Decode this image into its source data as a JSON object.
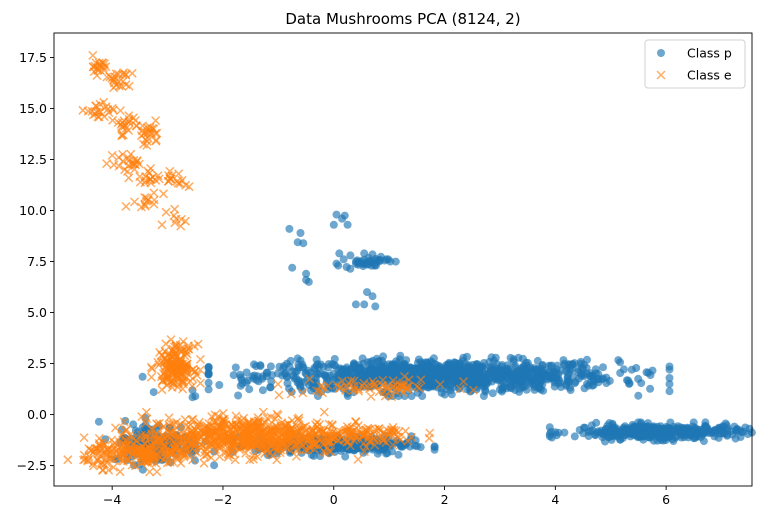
{
  "chart_data": {
    "type": "scatter",
    "title": "Data Mushrooms PCA (8124, 2)",
    "xlabel": "",
    "ylabel": "",
    "xlim": [
      -5.05,
      7.55
    ],
    "ylim": [
      -3.5,
      18.7
    ],
    "xticks": [
      -4,
      -2,
      0,
      2,
      4,
      6
    ],
    "xtick_labels": [
      "−4",
      "−2",
      "0",
      "2",
      "4",
      "6"
    ],
    "yticks": [
      -2.5,
      0.0,
      2.5,
      5.0,
      7.5,
      10.0,
      12.5,
      15.0,
      17.5
    ],
    "ytick_labels": [
      "−2.5",
      "0.0",
      "2.5",
      "5.0",
      "7.5",
      "10.0",
      "12.5",
      "15.0",
      "17.5"
    ],
    "grid": false,
    "legend_position": "top-right",
    "series": [
      {
        "name": "Class p",
        "marker": "circle",
        "color": "#1f77b4",
        "opacity": 0.65,
        "clusters": [
          {
            "cx": 1.9,
            "cy": 1.9,
            "sx": 1.6,
            "sy": 0.38,
            "n": 1100
          },
          {
            "cx": 5.85,
            "cy": -0.85,
            "sx": 0.75,
            "sy": 0.18,
            "n": 380
          },
          {
            "cx": 0.0,
            "cy": -1.5,
            "sx": 0.7,
            "sy": 0.22,
            "n": 300
          },
          {
            "cx": -3.2,
            "cy": -1.4,
            "sx": 0.4,
            "sy": 0.5,
            "n": 160
          },
          {
            "cx": 0.6,
            "cy": 7.5,
            "sx": 0.2,
            "sy": 0.15,
            "n": 35
          }
        ],
        "points": [
          [
            -0.8,
            9.1
          ],
          [
            -0.6,
            8.9
          ],
          [
            -0.65,
            8.45
          ],
          [
            -0.55,
            8.4
          ],
          [
            -0.75,
            7.2
          ],
          [
            -0.5,
            6.9
          ],
          [
            -0.5,
            6.6
          ],
          [
            -0.45,
            6.5
          ],
          [
            0.05,
            9.8
          ],
          [
            0.15,
            9.6
          ],
          [
            0.2,
            9.75
          ],
          [
            0.25,
            9.3
          ],
          [
            0.0,
            9.3
          ],
          [
            0.1,
            7.9
          ],
          [
            0.3,
            7.8
          ],
          [
            0.55,
            7.9
          ],
          [
            0.7,
            7.85
          ],
          [
            0.4,
            7.5
          ],
          [
            0.05,
            7.4
          ],
          [
            0.75,
            7.4
          ],
          [
            0.6,
            6.0
          ],
          [
            0.7,
            5.8
          ],
          [
            0.55,
            5.4
          ],
          [
            0.75,
            5.3
          ],
          [
            0.4,
            5.4
          ],
          [
            -3.45,
            1.85
          ],
          [
            -3.25,
            1.1
          ],
          [
            -2.55,
            1.2
          ],
          [
            -2.5,
            0.9
          ],
          [
            -2.55,
            0.85
          ],
          [
            -0.6,
            2.65
          ],
          [
            3.3,
            1.5
          ],
          [
            3.8,
            1.85
          ],
          [
            4.1,
            1.35
          ],
          [
            -0.6,
            1.35
          ],
          [
            4.6,
            -1.05
          ],
          [
            6.95,
            -0.7
          ],
          [
            1.1,
            -1.4
          ]
        ]
      },
      {
        "name": "Class e",
        "marker": "x",
        "color": "#ff7f0e",
        "opacity": 0.65,
        "clusters": [
          {
            "cx": -1.6,
            "cy": -1.05,
            "sx": 0.9,
            "sy": 0.45,
            "n": 650
          },
          {
            "cx": -3.5,
            "cy": -1.9,
            "sx": 0.5,
            "sy": 0.35,
            "n": 220
          },
          {
            "cx": 0.6,
            "cy": -1.0,
            "sx": 0.5,
            "sy": 0.25,
            "n": 80
          },
          {
            "cx": -2.85,
            "cy": 2.4,
            "sx": 0.17,
            "sy": 0.5,
            "n": 170
          },
          {
            "cx": 0.7,
            "cy": 1.35,
            "sx": 0.7,
            "sy": 0.2,
            "n": 70
          },
          {
            "cx": -4.25,
            "cy": 17.1,
            "sx": 0.1,
            "sy": 0.2,
            "n": 18
          },
          {
            "cx": -3.85,
            "cy": 16.3,
            "sx": 0.12,
            "sy": 0.3,
            "n": 22
          },
          {
            "cx": -4.25,
            "cy": 14.8,
            "sx": 0.12,
            "sy": 0.25,
            "n": 20
          },
          {
            "cx": -3.75,
            "cy": 14.3,
            "sx": 0.15,
            "sy": 0.35,
            "n": 22
          },
          {
            "cx": -3.35,
            "cy": 13.7,
            "sx": 0.13,
            "sy": 0.3,
            "n": 22
          },
          {
            "cx": -3.75,
            "cy": 12.3,
            "sx": 0.12,
            "sy": 0.25,
            "n": 18
          },
          {
            "cx": -3.3,
            "cy": 11.7,
            "sx": 0.12,
            "sy": 0.3,
            "n": 18
          },
          {
            "cx": -2.85,
            "cy": 11.6,
            "sx": 0.1,
            "sy": 0.3,
            "n": 14
          },
          {
            "cx": -3.3,
            "cy": 10.2,
            "sx": 0.12,
            "sy": 0.3,
            "n": 10
          },
          {
            "cx": -2.8,
            "cy": 9.6,
            "sx": 0.1,
            "sy": 0.2,
            "n": 8
          }
        ],
        "points": [
          [
            -4.35,
            17.6
          ],
          [
            -4.1,
            12.3
          ],
          [
            -4.0,
            12.7
          ],
          [
            -3.75,
            10.2
          ],
          [
            -3.1,
            9.3
          ],
          [
            -3.55,
            12.4
          ],
          [
            -3.7,
            11.6
          ],
          [
            -3.25,
            14.0
          ],
          [
            -2.8,
            11.8
          ],
          [
            -3.35,
            10.5
          ]
        ]
      }
    ]
  }
}
